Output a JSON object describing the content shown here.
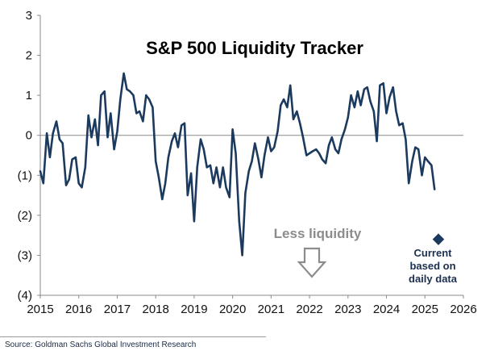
{
  "chart_data": {
    "type": "line",
    "title": "S&P 500 Liquidity Tracker",
    "xlabel": "",
    "ylabel": "",
    "xlim": [
      2015,
      2026
    ],
    "ylim": [
      -4,
      3
    ],
    "x_ticks": [
      "2015",
      "2016",
      "2017",
      "2018",
      "2019",
      "2020",
      "2021",
      "2022",
      "2023",
      "2024",
      "2025",
      "2026"
    ],
    "y_ticks": [
      {
        "value": 3,
        "label": "3"
      },
      {
        "value": 2,
        "label": "2"
      },
      {
        "value": 1,
        "label": "1"
      },
      {
        "value": 0,
        "label": "0"
      },
      {
        "value": -1,
        "label": "(1)"
      },
      {
        "value": -2,
        "label": "(2)"
      },
      {
        "value": -3,
        "label": "(3)"
      },
      {
        "value": -4,
        "label": "(4)"
      }
    ],
    "grid": false,
    "zero_line": true,
    "line_color": "#1b3a5e",
    "marker_color": "#1b3a5e",
    "series": [
      {
        "x": [
          2015.0,
          2015.08,
          2015.17,
          2015.25,
          2015.33,
          2015.42,
          2015.5,
          2015.58,
          2015.67,
          2015.75,
          2015.83,
          2015.92,
          2016.0,
          2016.08,
          2016.17,
          2016.25,
          2016.33,
          2016.42,
          2016.5,
          2016.58,
          2016.67,
          2016.75,
          2016.83,
          2016.92,
          2017.0,
          2017.08,
          2017.17,
          2017.25,
          2017.33,
          2017.42,
          2017.5,
          2017.58,
          2017.67,
          2017.75,
          2017.83,
          2017.92,
          2018.0,
          2018.08,
          2018.17,
          2018.25,
          2018.33,
          2018.42,
          2018.5,
          2018.58,
          2018.67,
          2018.75,
          2018.83,
          2018.92,
          2019.0,
          2019.08,
          2019.17,
          2019.25,
          2019.33,
          2019.42,
          2019.5,
          2019.58,
          2019.67,
          2019.75,
          2019.83,
          2019.92,
          2020.0,
          2020.08,
          2020.17,
          2020.25,
          2020.33,
          2020.42,
          2020.5,
          2020.58,
          2020.67,
          2020.75,
          2020.83,
          2020.92,
          2021.0,
          2021.08,
          2021.17,
          2021.25,
          2021.33,
          2021.42,
          2021.5,
          2021.58,
          2021.67,
          2021.75,
          2021.83,
          2021.92,
          2022.0,
          2022.08,
          2022.17,
          2022.25,
          2022.33,
          2022.42,
          2022.5,
          2022.58,
          2022.67,
          2022.75,
          2022.83,
          2022.92,
          2023.0,
          2023.08,
          2023.17,
          2023.25,
          2023.33,
          2023.42,
          2023.5,
          2023.58,
          2023.67,
          2023.75,
          2023.83,
          2023.92,
          2024.0,
          2024.08,
          2024.17,
          2024.25,
          2024.33,
          2024.42,
          2024.5,
          2024.58,
          2024.67,
          2024.75,
          2024.83,
          2024.92,
          2025.0,
          2025.08,
          2025.17,
          2025.25
        ],
        "values": [
          -0.9,
          -1.2,
          0.05,
          -0.55,
          0.05,
          0.35,
          -0.1,
          -0.2,
          -1.25,
          -1.1,
          -0.6,
          -0.55,
          -1.2,
          -1.3,
          -0.8,
          0.5,
          -0.05,
          0.4,
          -0.25,
          1.0,
          1.1,
          -0.05,
          0.55,
          -0.35,
          0.1,
          0.9,
          1.55,
          1.15,
          1.1,
          1.0,
          0.55,
          0.6,
          0.35,
          1.0,
          0.9,
          0.7,
          -0.65,
          -1.05,
          -1.6,
          -1.2,
          -0.55,
          -0.15,
          0.05,
          -0.3,
          0.25,
          0.3,
          -1.5,
          -0.95,
          -2.15,
          -0.8,
          -0.1,
          -0.35,
          -0.8,
          -0.75,
          -1.2,
          -0.8,
          -1.3,
          -0.8,
          -1.3,
          -1.55,
          0.15,
          -0.45,
          -2.15,
          -3.0,
          -1.45,
          -0.9,
          -0.65,
          -0.2,
          -0.6,
          -1.05,
          -0.5,
          -0.05,
          -0.4,
          -0.3,
          0.1,
          0.75,
          0.9,
          0.7,
          1.25,
          0.4,
          0.6,
          0.3,
          -0.05,
          -0.5,
          -0.45,
          -0.4,
          -0.35,
          -0.45,
          -0.6,
          -0.7,
          -0.25,
          -0.05,
          -0.35,
          -0.45,
          -0.1,
          0.15,
          0.45,
          1.0,
          0.7,
          1.1,
          0.75,
          1.15,
          1.2,
          0.85,
          0.6,
          -0.15,
          1.25,
          1.3,
          0.55,
          0.95,
          1.2,
          0.6,
          0.25,
          0.3,
          -0.1,
          -1.2,
          -0.65,
          -0.3,
          -0.35,
          -1.0,
          -0.55,
          -0.65,
          -0.75,
          -1.35
        ]
      }
    ],
    "current_marker": {
      "x": 2025.35,
      "y": -2.6,
      "shape": "diamond"
    },
    "annotations": {
      "less_liquidity": "Less liquidity",
      "current_lines": [
        "Current",
        "based on",
        "daily data"
      ]
    },
    "source": "Source: Goldman Sachs Global Investment Research"
  }
}
